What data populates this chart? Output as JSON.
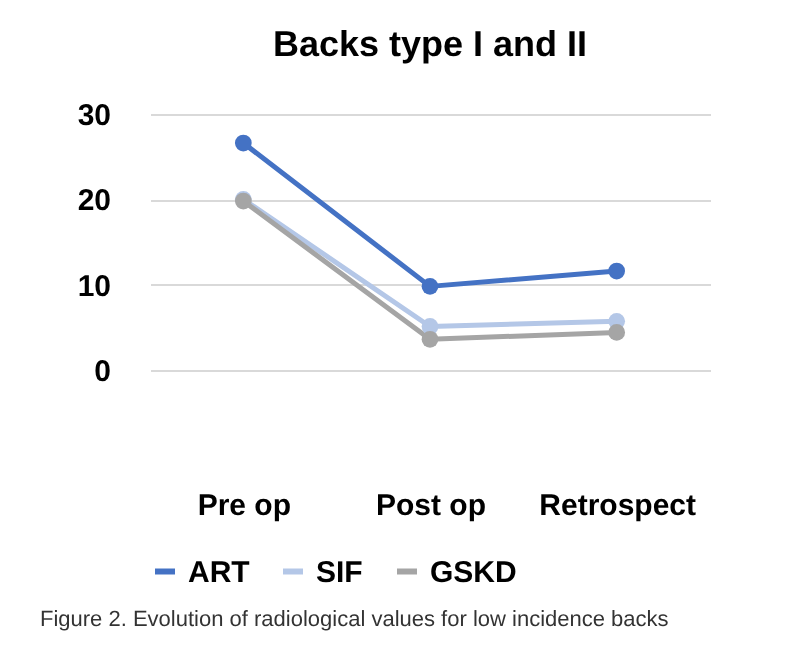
{
  "chart_data": {
    "type": "line",
    "title": "Backs type I and II",
    "categories": [
      "Pre op",
      "Post op",
      "Retrospect"
    ],
    "series": [
      {
        "name": "ART",
        "color": "#4472c4",
        "values": [
          26.6,
          9.8,
          11.6
        ]
      },
      {
        "name": "SIF",
        "color": "#b4c7e7",
        "values": [
          20,
          5.1,
          5.7
        ]
      },
      {
        "name": "GSKD",
        "color": "#a5a5a5",
        "values": [
          19.8,
          3.6,
          4.4
        ]
      }
    ],
    "ylim": [
      0,
      30
    ],
    "yticks": [
      0,
      10,
      20,
      30
    ],
    "grid": "y",
    "legend": "bottom",
    "marker": "circle",
    "line_style": "solid",
    "annotations": [
      "Figure 2. Evolution of radiological values for low incidence backs"
    ]
  }
}
